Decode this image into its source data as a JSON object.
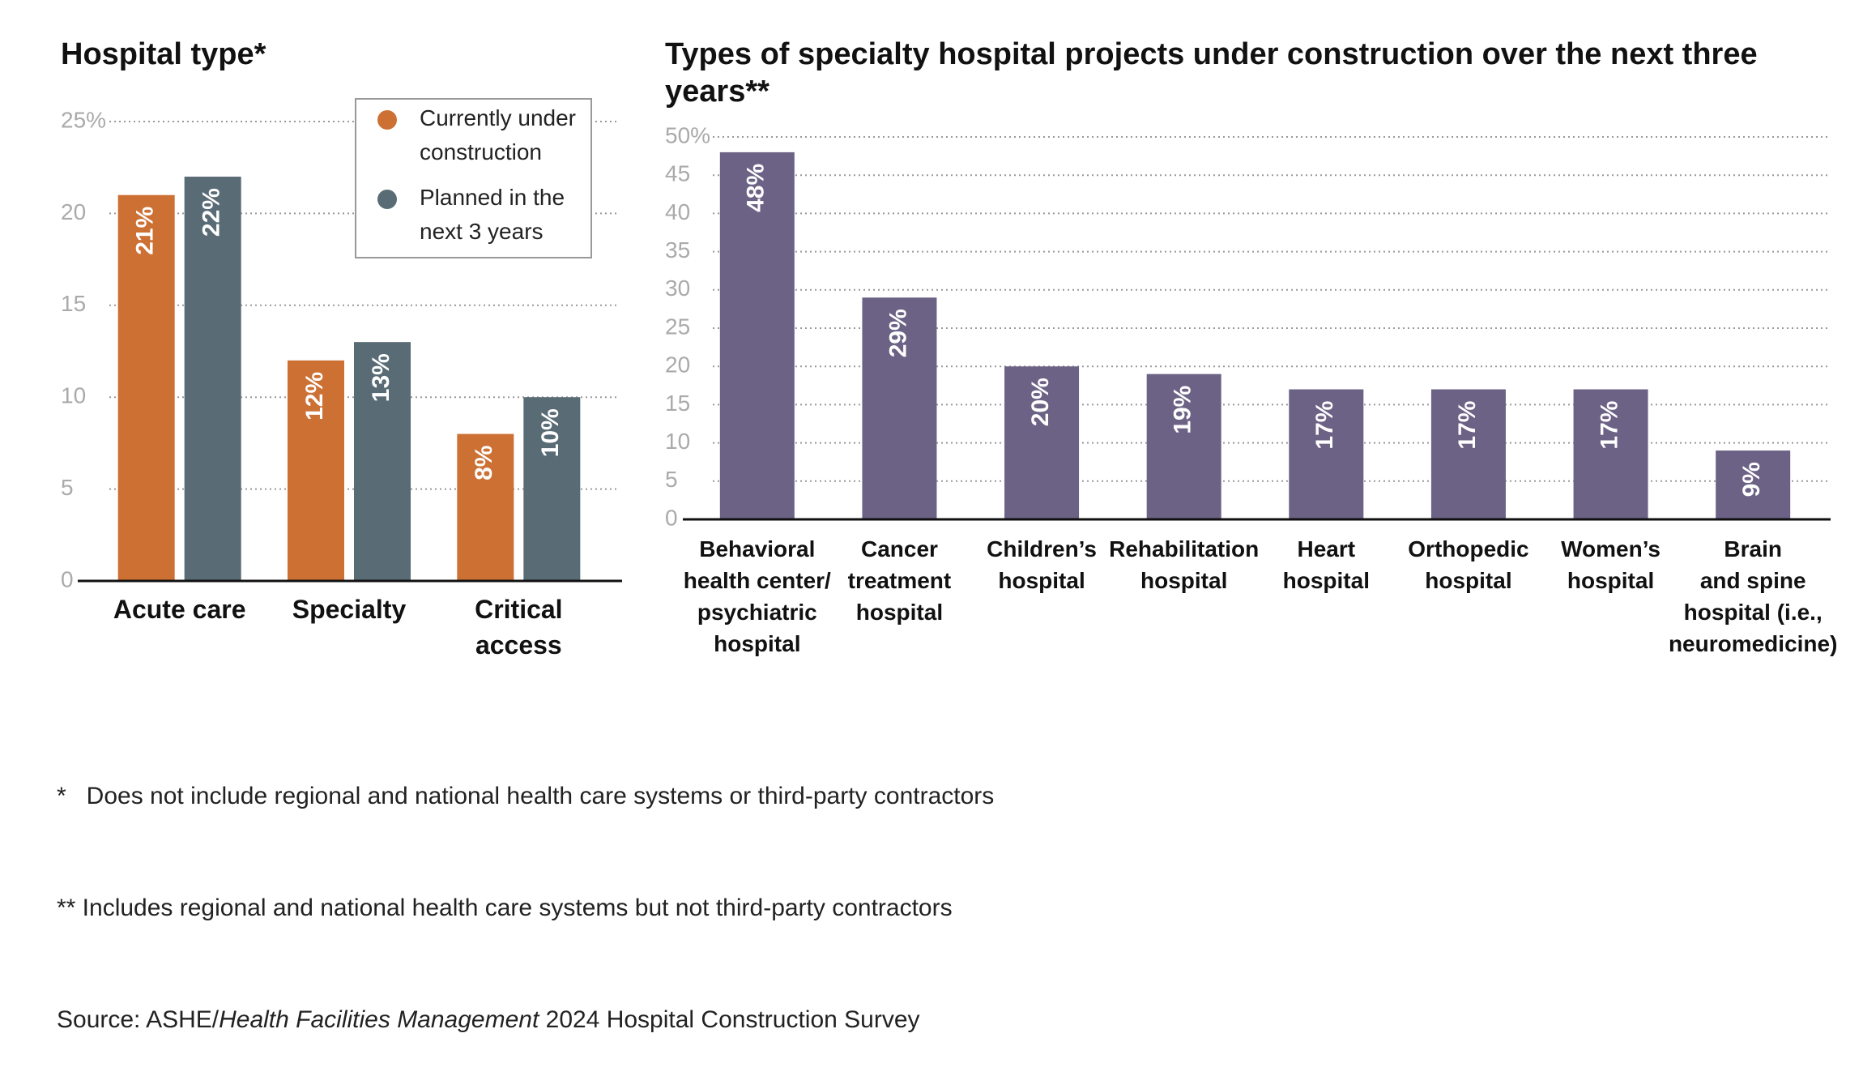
{
  "chart_data": [
    {
      "type": "bar",
      "title": "Hospital type*",
      "categories": [
        "Acute care",
        "Specialty",
        "Critical\naccess"
      ],
      "series": [
        {
          "name": "Currently under\nconstruction",
          "color": "#cc7034",
          "values": [
            21,
            12,
            8
          ],
          "value_labels": [
            "21%",
            "12%",
            "8%"
          ]
        },
        {
          "name": "Planned in the\nnext 3 years",
          "color": "#596b75",
          "values": [
            22,
            13,
            10
          ],
          "value_labels": [
            "22%",
            "13%",
            "10%"
          ]
        }
      ],
      "ylim": [
        0,
        25
      ],
      "yticks": [
        0,
        5,
        10,
        15,
        20,
        {
          "value": 25,
          "label": "25%"
        }
      ],
      "grid": true,
      "legend": "upper right"
    },
    {
      "type": "bar",
      "title": "Types of specialty hospital projects under construction over the next three years**",
      "categories": [
        "Behavioral\nhealth center/\npsychiatric\nhospital",
        "Cancer\ntreatment\nhospital",
        "Children’s\nhospital",
        "Rehabilitation\nhospital",
        "Heart\nhospital",
        "Orthopedic\nhospital",
        "Women’s\nhospital",
        "Brain\nand spine\nhospital (i.e.,\nneuromedicine)"
      ],
      "values": [
        48,
        29,
        20,
        19,
        17,
        17,
        17,
        9
      ],
      "value_labels": [
        "48%",
        "29%",
        "20%",
        "19%",
        "17%",
        "17%",
        "17%",
        "9%"
      ],
      "color": "#6c6285",
      "ylim": [
        0,
        50
      ],
      "yticks": [
        0,
        5,
        10,
        15,
        20,
        25,
        30,
        35,
        40,
        45,
        {
          "value": 50,
          "label": "50%"
        }
      ],
      "grid": true
    }
  ],
  "notes": [
    "*   Does not include regional and national health care systems or third-party contractors",
    "** Includes regional and national health care systems but not third-party contractors"
  ],
  "source": [
    "Source: ASHE/",
    "Health Facilities Management",
    " 2024 Hospital Construction Survey"
  ]
}
